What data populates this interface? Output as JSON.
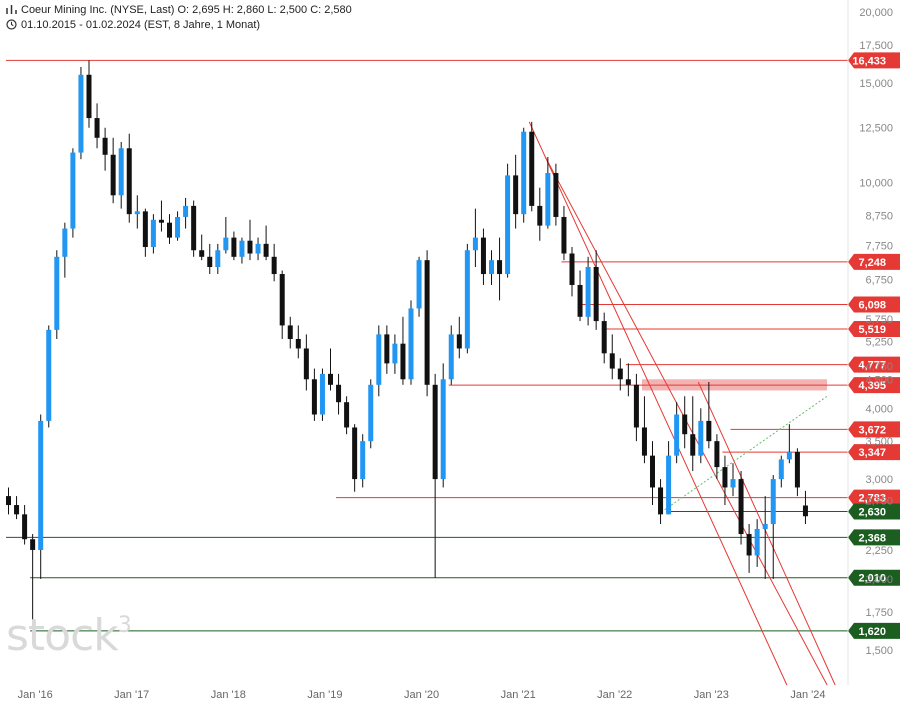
{
  "header": {
    "line1": "Coeur Mining Inc. (NYSE, Last)  O: 2,695  H: 2,860  L: 2,500  C: 2,580",
    "line2": "01.10.2015 - 01.02.2024  (EST, 8 Jahre, 1 Monat)",
    "icon1": "compare-bars-icon",
    "icon2": "clock-icon"
  },
  "watermark": {
    "text": "stock",
    "sup": "3"
  },
  "colors": {
    "up": "#2196f3",
    "down": "#111111",
    "resistance": "#e53935",
    "support": "#1b5e20",
    "zone": "#ef9a9a",
    "trend": "#66bb6a"
  },
  "chart_data": {
    "type": "candlestick",
    "scale": "log",
    "ylim": [
      1.3,
      21
    ],
    "x_range": [
      "2015-10",
      "2024-04"
    ],
    "y_ticks": [
      "20,000",
      "17,500",
      "15,000",
      "12,500",
      "10,000",
      "8,750",
      "7,750",
      "6,750",
      "5,750",
      "5,250",
      "4,750",
      "4,500",
      "4,000",
      "3,500",
      "3,000",
      "2,750",
      "2,250",
      "2,000",
      "1,750",
      "1,500"
    ],
    "y_tick_values": [
      20,
      17.5,
      15,
      12.5,
      10,
      8.75,
      7.75,
      6.75,
      5.75,
      5.25,
      4.75,
      4.5,
      4,
      3.5,
      3,
      2.75,
      2.25,
      2,
      1.75,
      1.5
    ],
    "x_ticks": [
      "Jan '16",
      "Jan '17",
      "Jan '18",
      "Jan '19",
      "Jan '20",
      "Jan '21",
      "Jan '22",
      "Jan '23",
      "Jan '24"
    ],
    "x_tick_values": [
      "2016-01",
      "2017-01",
      "2018-01",
      "2019-01",
      "2020-01",
      "2021-01",
      "2022-01",
      "2023-01",
      "2024-01"
    ],
    "candles": [
      [
        "2015-10",
        2.8,
        2.9,
        2.6,
        2.7
      ],
      [
        "2015-11",
        2.7,
        2.8,
        2.55,
        2.6
      ],
      [
        "2015-12",
        2.6,
        2.7,
        2.3,
        2.35
      ],
      [
        "2016-01",
        2.35,
        2.4,
        1.62,
        2.25
      ],
      [
        "2016-02",
        2.25,
        3.9,
        2.0,
        3.8
      ],
      [
        "2016-03",
        3.8,
        5.6,
        3.7,
        5.5
      ],
      [
        "2016-04",
        5.5,
        7.6,
        5.3,
        7.4
      ],
      [
        "2016-05",
        7.4,
        8.5,
        6.8,
        8.3
      ],
      [
        "2016-06",
        8.3,
        11.5,
        8.0,
        11.3
      ],
      [
        "2016-07",
        11.3,
        16.0,
        11.0,
        15.5
      ],
      [
        "2016-08",
        15.5,
        16.433,
        12.5,
        13.0
      ],
      [
        "2016-09",
        13.0,
        13.8,
        11.5,
        12.0
      ],
      [
        "2016-10",
        12.0,
        12.5,
        10.5,
        11.2
      ],
      [
        "2016-11",
        11.2,
        12.0,
        9.2,
        9.5
      ],
      [
        "2016-12",
        9.5,
        11.8,
        9.0,
        11.5
      ],
      [
        "2017-01",
        11.5,
        12.2,
        8.5,
        8.8
      ],
      [
        "2017-02",
        8.8,
        9.5,
        8.3,
        8.9
      ],
      [
        "2017-03",
        8.9,
        9.0,
        7.4,
        7.7
      ],
      [
        "2017-04",
        7.7,
        8.8,
        7.5,
        8.6
      ],
      [
        "2017-05",
        8.6,
        9.3,
        8.2,
        8.5
      ],
      [
        "2017-06",
        8.5,
        8.8,
        7.8,
        8.0
      ],
      [
        "2017-07",
        8.0,
        8.9,
        7.9,
        8.7
      ],
      [
        "2017-08",
        8.7,
        9.4,
        8.3,
        9.1
      ],
      [
        "2017-09",
        9.1,
        9.3,
        7.4,
        7.6
      ],
      [
        "2017-10",
        7.6,
        8.1,
        7.3,
        7.4
      ],
      [
        "2017-11",
        7.4,
        7.8,
        6.9,
        7.1
      ],
      [
        "2017-12",
        7.1,
        7.8,
        6.9,
        7.6
      ],
      [
        "2018-01",
        7.6,
        8.7,
        7.5,
        8.0
      ],
      [
        "2018-02",
        8.0,
        8.2,
        7.3,
        7.4
      ],
      [
        "2018-03",
        7.4,
        8.0,
        7.2,
        7.9
      ],
      [
        "2018-04",
        7.9,
        8.6,
        7.3,
        7.5
      ],
      [
        "2018-05",
        7.5,
        8.0,
        7.3,
        7.8
      ],
      [
        "2018-06",
        7.8,
        8.4,
        7.3,
        7.4
      ],
      [
        "2018-07",
        7.4,
        7.8,
        6.7,
        6.9
      ],
      [
        "2018-08",
        6.9,
        7.0,
        5.3,
        5.6
      ],
      [
        "2018-09",
        5.6,
        5.8,
        5.1,
        5.3
      ],
      [
        "2018-10",
        5.3,
        5.6,
        4.9,
        5.1
      ],
      [
        "2018-11",
        5.1,
        5.4,
        4.3,
        4.5
      ],
      [
        "2018-12",
        4.5,
        4.7,
        3.8,
        3.9
      ],
      [
        "2019-01",
        3.9,
        4.7,
        3.8,
        4.6
      ],
      [
        "2019-02",
        4.6,
        5.1,
        4.3,
        4.4
      ],
      [
        "2019-03",
        4.4,
        4.6,
        3.9,
        4.1
      ],
      [
        "2019-04",
        4.1,
        4.2,
        3.6,
        3.7
      ],
      [
        "2019-05",
        3.7,
        3.75,
        2.85,
        3.0
      ],
      [
        "2019-06",
        3.0,
        3.6,
        2.9,
        3.5
      ],
      [
        "2019-07",
        3.5,
        4.5,
        3.4,
        4.4
      ],
      [
        "2019-08",
        4.4,
        5.6,
        4.2,
        5.4
      ],
      [
        "2019-09",
        5.4,
        5.6,
        4.6,
        4.8
      ],
      [
        "2019-10",
        4.8,
        5.4,
        4.6,
        5.2
      ],
      [
        "2019-11",
        5.2,
        5.8,
        4.4,
        4.5
      ],
      [
        "2019-12",
        4.5,
        6.2,
        4.4,
        6.0
      ],
      [
        "2020-01",
        6.0,
        7.4,
        5.8,
        7.3
      ],
      [
        "2020-02",
        7.3,
        7.6,
        4.2,
        4.4
      ],
      [
        "2020-03",
        4.4,
        4.6,
        2.01,
        3.0
      ],
      [
        "2020-04",
        3.0,
        4.8,
        2.9,
        4.5
      ],
      [
        "2020-05",
        4.5,
        5.6,
        4.4,
        5.4
      ],
      [
        "2020-06",
        5.4,
        5.8,
        4.9,
        5.1
      ],
      [
        "2020-07",
        5.1,
        7.8,
        5.0,
        7.6
      ],
      [
        "2020-08",
        7.6,
        9.0,
        7.1,
        8.0
      ],
      [
        "2020-09",
        8.0,
        8.3,
        6.6,
        6.9
      ],
      [
        "2020-10",
        6.9,
        7.6,
        6.6,
        7.3
      ],
      [
        "2020-11",
        7.3,
        8.0,
        6.2,
        6.9
      ],
      [
        "2020-12",
        6.9,
        10.8,
        6.8,
        10.3
      ],
      [
        "2021-01",
        10.3,
        11.2,
        8.3,
        8.8
      ],
      [
        "2021-02",
        8.8,
        12.5,
        8.5,
        12.3
      ],
      [
        "2021-03",
        12.3,
        12.8,
        8.9,
        9.1
      ],
      [
        "2021-04",
        9.1,
        9.8,
        7.9,
        8.4
      ],
      [
        "2021-05",
        8.4,
        11.1,
        8.3,
        10.4
      ],
      [
        "2021-06",
        10.4,
        10.8,
        8.4,
        8.7
      ],
      [
        "2021-07",
        8.7,
        9.1,
        7.3,
        7.5
      ],
      [
        "2021-08",
        7.5,
        7.7,
        6.3,
        6.6
      ],
      [
        "2021-09",
        6.6,
        7.0,
        5.7,
        5.8
      ],
      [
        "2021-10",
        5.8,
        7.4,
        5.6,
        7.1
      ],
      [
        "2021-11",
        7.1,
        7.6,
        5.5,
        5.7
      ],
      [
        "2021-12",
        5.7,
        5.9,
        4.8,
        5.0
      ],
      [
        "2022-01",
        5.0,
        5.4,
        4.5,
        4.7
      ],
      [
        "2022-02",
        4.7,
        4.9,
        4.3,
        4.5
      ],
      [
        "2022-03",
        4.5,
        4.8,
        4.2,
        4.4
      ],
      [
        "2022-04",
        4.4,
        4.6,
        3.5,
        3.7
      ],
      [
        "2022-05",
        3.7,
        4.2,
        3.2,
        3.3
      ],
      [
        "2022-06",
        3.3,
        3.5,
        2.7,
        2.9
      ],
      [
        "2022-07",
        2.9,
        3.0,
        2.5,
        2.6
      ],
      [
        "2022-08",
        2.6,
        3.5,
        2.6,
        3.3
      ],
      [
        "2022-09",
        3.3,
        4.1,
        3.2,
        3.9
      ],
      [
        "2022-10",
        3.9,
        4.2,
        3.4,
        3.6
      ],
      [
        "2022-11",
        3.6,
        4.2,
        3.1,
        3.3
      ],
      [
        "2022-12",
        3.3,
        4.0,
        3.2,
        3.8
      ],
      [
        "2023-01",
        3.8,
        4.45,
        3.4,
        3.5
      ],
      [
        "2023-02",
        3.5,
        3.6,
        3.0,
        3.15
      ],
      [
        "2023-03",
        3.15,
        3.3,
        2.7,
        2.9
      ],
      [
        "2023-04",
        2.9,
        3.2,
        2.8,
        3.0
      ],
      [
        "2023-05",
        3.0,
        3.1,
        2.3,
        2.4
      ],
      [
        "2023-06",
        2.4,
        2.5,
        2.05,
        2.2
      ],
      [
        "2023-07",
        2.2,
        2.55,
        2.1,
        2.45
      ],
      [
        "2023-08",
        2.45,
        2.8,
        2.0,
        2.5
      ],
      [
        "2023-09",
        2.5,
        3.05,
        2.0,
        3.0
      ],
      [
        "2023-10",
        3.0,
        3.3,
        2.9,
        3.25
      ],
      [
        "2023-11",
        3.25,
        3.75,
        3.2,
        3.35
      ],
      [
        "2023-12",
        3.35,
        3.4,
        2.8,
        2.9
      ],
      [
        "2024-01",
        2.695,
        2.86,
        2.5,
        2.58
      ]
    ],
    "levels": [
      {
        "value": 16.433,
        "label": "16,433",
        "kind": "resistance",
        "from": "2015-10"
      },
      {
        "value": 7.248,
        "label": "7,248",
        "kind": "resistance",
        "from": "2021-07"
      },
      {
        "value": 6.098,
        "label": "6,098",
        "kind": "resistance",
        "from": "2021-09"
      },
      {
        "value": 5.519,
        "label": "5,519",
        "kind": "resistance",
        "from": "2021-12"
      },
      {
        "value": 4.777,
        "label": "4,777",
        "kind": "resistance",
        "from": "2022-03"
      },
      {
        "value": 4.395,
        "label": "4,395",
        "kind": "resistance",
        "from": "2020-05"
      },
      {
        "value": 3.672,
        "label": "3,672",
        "kind": "resistance",
        "from": "2023-04"
      },
      {
        "value": 3.347,
        "label": "3,347",
        "kind": "resistance",
        "from": "2023-03"
      },
      {
        "value": 2.783,
        "label": "2,783",
        "kind": "resistance",
        "from": "2019-03"
      },
      {
        "value": 2.63,
        "label": "2,630",
        "kind": "support",
        "from": "2022-08"
      },
      {
        "value": 2.368,
        "label": "2,368",
        "kind": "support",
        "from": "2015-10"
      },
      {
        "value": 2.01,
        "label": "2,010",
        "kind": "support",
        "from": "2016-01"
      },
      {
        "value": 1.62,
        "label": "1,620",
        "kind": "support",
        "from": "2016-01"
      }
    ],
    "zone": {
      "from": "2022-05",
      "to": "2024-04",
      "low": 4.3,
      "high": 4.5
    },
    "trendlines": [
      {
        "kind": "channel",
        "p1": [
          "2021-03",
          12.8
        ],
        "p2": [
          "2023-11",
          1.3
        ]
      },
      {
        "kind": "channel",
        "p1": [
          "2021-05",
          11.1
        ],
        "p2": [
          "2024-04",
          1.3
        ]
      },
      {
        "kind": "channel",
        "p1": [
          "2022-12",
          4.45
        ],
        "p2": [
          "2024-05",
          1.3
        ]
      },
      {
        "kind": "dotted",
        "p1": [
          "2022-07",
          2.6
        ],
        "p2": [
          "2024-04",
          4.2
        ]
      }
    ]
  }
}
